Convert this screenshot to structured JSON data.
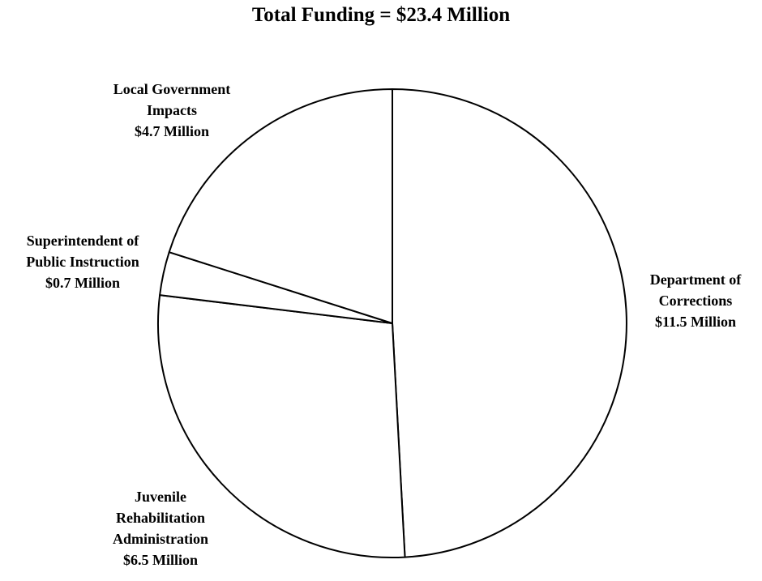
{
  "chart_data": {
    "type": "pie",
    "title": "Total Funding = $23.4 Million",
    "slices": [
      {
        "name": "Department of Corrections",
        "value": 11.5,
        "lines": [
          "Department of",
          "Corrections",
          "$11.5 Million"
        ]
      },
      {
        "name": "Juvenile Rehabilitation Administration",
        "value": 6.5,
        "lines": [
          "Juvenile",
          "Rehabilitation",
          "Administration",
          "$6.5 Million"
        ]
      },
      {
        "name": "Superintendent of Public Instruction",
        "value": 0.7,
        "lines": [
          "Superintendent of",
          "Public Instruction",
          "$0.7 Million"
        ]
      },
      {
        "name": "Local Government Impacts",
        "value": 4.7,
        "lines": [
          "Local Government",
          "Impacts",
          "$4.7 Million"
        ]
      }
    ],
    "start": "12 o'clock",
    "direction": "clockwise",
    "colors": {
      "fill": "#ffffff",
      "stroke": "#000000"
    }
  }
}
